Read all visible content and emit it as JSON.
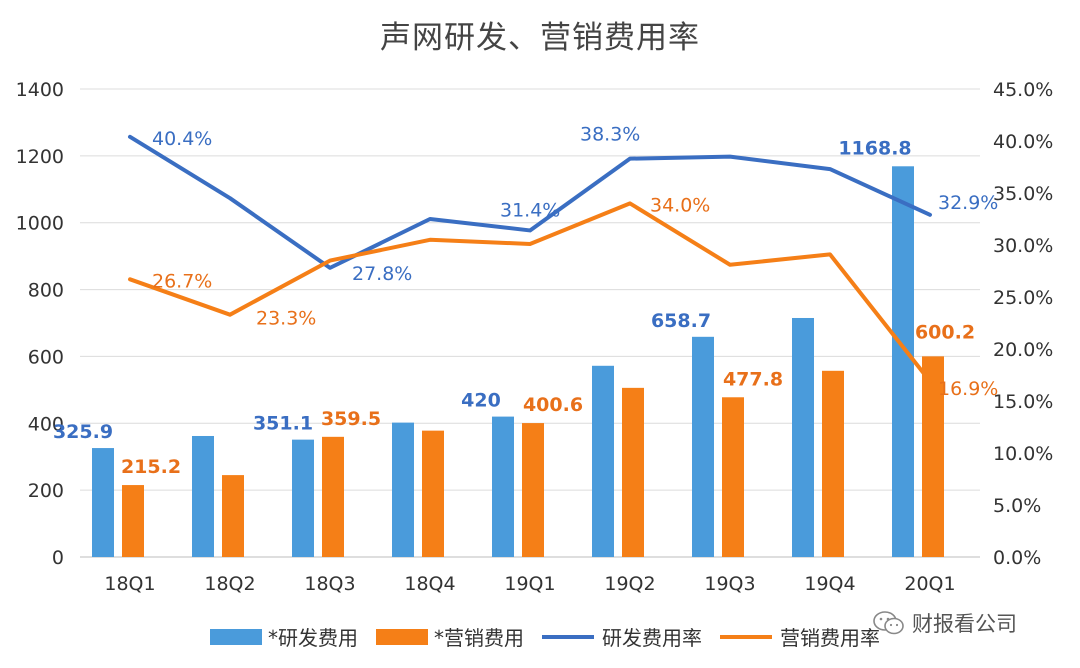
{
  "chart_data": {
    "type": "bar+line",
    "title": "声网研发、营销费用率",
    "categories": [
      "18Q1",
      "18Q2",
      "18Q3",
      "18Q4",
      "19Q1",
      "19Q2",
      "19Q3",
      "19Q4",
      "20Q1"
    ],
    "left_axis": {
      "min": 0,
      "max": 1400,
      "ticks": [
        "0",
        "200",
        "400",
        "600",
        "800",
        "1000",
        "1200",
        "1400"
      ]
    },
    "right_axis": {
      "min": 0,
      "max": 45,
      "ticks": [
        "0.0%",
        "5.0%",
        "10.0%",
        "15.0%",
        "20.0%",
        "25.0%",
        "30.0%",
        "35.0%",
        "40.0%",
        "45.0%"
      ]
    },
    "series": [
      {
        "name": "*研发费用",
        "kind": "bar",
        "axis": "left",
        "color": "#4A9BDB",
        "values": [
          325.9,
          362,
          351.1,
          402,
          420,
          572,
          658.7,
          715,
          1168.8
        ],
        "labels": [
          "325.9",
          "",
          "351.1",
          "",
          "420",
          "",
          "658.7",
          "",
          "1168.8"
        ]
      },
      {
        "name": "*营销费用",
        "kind": "bar",
        "axis": "left",
        "color": "#F57F17",
        "values": [
          215.2,
          245,
          359.5,
          378,
          400.6,
          506,
          477.8,
          557,
          600.2
        ],
        "labels": [
          "215.2",
          "",
          "359.5",
          "",
          "400.6",
          "",
          "477.8",
          "",
          "600.2"
        ]
      },
      {
        "name": "研发费用率",
        "kind": "line",
        "axis": "right",
        "color": "#3A6EC2",
        "values": [
          40.4,
          34.5,
          27.8,
          32.5,
          31.4,
          38.3,
          38.5,
          37.3,
          32.9
        ],
        "labels": [
          "40.4%",
          "",
          "27.8%",
          "",
          "31.4%",
          "38.3%",
          "",
          "",
          "32.9%"
        ]
      },
      {
        "name": "营销费用率",
        "kind": "line",
        "axis": "right",
        "color": "#F57F17",
        "values": [
          26.7,
          23.3,
          28.5,
          30.5,
          30.1,
          34.0,
          28.1,
          29.1,
          16.9
        ],
        "labels": [
          "26.7%",
          "23.3%",
          "",
          "",
          "",
          "34.0%",
          "",
          "",
          "16.9%"
        ]
      }
    ],
    "legend": "bottom",
    "grid": true
  },
  "watermark": {
    "text": "财报看公司"
  }
}
